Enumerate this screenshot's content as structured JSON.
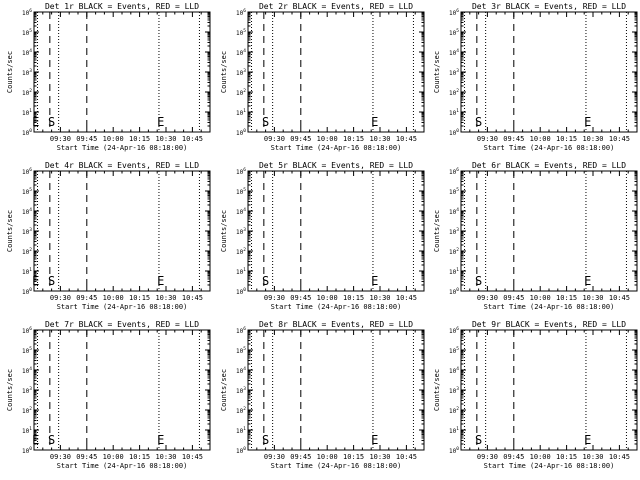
{
  "window": {
    "background": "#ffffff",
    "foreground": "#000000"
  },
  "chart_data": [
    {
      "type": "line",
      "title": "Det 1r BLACK = Events, RED = LLD",
      "xlabel": "Start Time (24-Apr-16 08:18:00)",
      "ylabel": "Counts/sec",
      "x_ticks": [
        "09:30",
        "09:45",
        "10:00",
        "10:15",
        "10:30",
        "10:45"
      ],
      "xlim_minutes": [
        555,
        655
      ],
      "y_ticks": [
        "10^0",
        "10^1",
        "10^2",
        "10^3",
        "10^4",
        "10^5",
        "10^6"
      ],
      "ylim": [
        1,
        1000000
      ],
      "log_y": true,
      "markers": [
        {
          "label": "E",
          "x": 556
        },
        {
          "label": "S",
          "x": 565
        },
        {
          "label": "E",
          "x": 627
        }
      ],
      "dashed_lines": [
        564,
        585
      ],
      "dotted_lines": [
        557,
        569,
        626,
        649
      ],
      "series": []
    },
    {
      "type": "line",
      "title": "Det 2r BLACK = Events, RED = LLD",
      "xlabel": "Start Time (24-Apr-16 08:18:00)",
      "ylabel": "Counts/sec",
      "x_ticks": [
        "09:30",
        "09:45",
        "10:00",
        "10:15",
        "10:30",
        "10:45"
      ],
      "xlim_minutes": [
        555,
        655
      ],
      "y_ticks": [
        "10^0",
        "10^1",
        "10^2",
        "10^3",
        "10^4",
        "10^5",
        "10^6"
      ],
      "ylim": [
        1,
        1000000
      ],
      "log_y": true,
      "markers": [
        {
          "label": "S",
          "x": 565
        },
        {
          "label": "E",
          "x": 627
        }
      ],
      "dashed_lines": [
        564,
        585
      ],
      "dotted_lines": [
        557,
        569,
        626,
        649
      ],
      "series": []
    },
    {
      "type": "line",
      "title": "Det 3r BLACK = Events, RED = LLD",
      "xlabel": "Start Time (24-Apr-16 08:18:00)",
      "ylabel": "Counts/sec",
      "x_ticks": [
        "09:30",
        "09:45",
        "10:00",
        "10:15",
        "10:30",
        "10:45"
      ],
      "xlim_minutes": [
        555,
        655
      ],
      "y_ticks": [
        "10^0",
        "10^1",
        "10^2",
        "10^3",
        "10^4",
        "10^5",
        "10^6"
      ],
      "ylim": [
        1,
        1000000
      ],
      "log_y": true,
      "markers": [
        {
          "label": "S",
          "x": 565
        },
        {
          "label": "E",
          "x": 627
        }
      ],
      "dashed_lines": [
        564,
        585
      ],
      "dotted_lines": [
        557,
        569,
        626,
        649
      ],
      "series": []
    },
    {
      "type": "line",
      "title": "Det 4r BLACK = Events, RED = LLD",
      "xlabel": "Start Time (24-Apr-16 08:18:00)",
      "ylabel": "Counts/sec",
      "x_ticks": [
        "09:30",
        "09:45",
        "10:00",
        "10:15",
        "10:30",
        "10:45"
      ],
      "xlim_minutes": [
        555,
        655
      ],
      "y_ticks": [
        "10^0",
        "10^1",
        "10^2",
        "10^3",
        "10^4",
        "10^5",
        "10^6"
      ],
      "ylim": [
        1,
        1000000
      ],
      "log_y": true,
      "markers": [
        {
          "label": "E",
          "x": 556
        },
        {
          "label": "S",
          "x": 565
        },
        {
          "label": "E",
          "x": 627
        }
      ],
      "dashed_lines": [
        564,
        585
      ],
      "dotted_lines": [
        557,
        569,
        626,
        649
      ],
      "series": []
    },
    {
      "type": "line",
      "title": "Det 5r BLACK = Events, RED = LLD",
      "xlabel": "Start Time (24-Apr-16 08:18:00)",
      "ylabel": "Counts/sec",
      "x_ticks": [
        "09:30",
        "09:45",
        "10:00",
        "10:15",
        "10:30",
        "10:45"
      ],
      "xlim_minutes": [
        555,
        655
      ],
      "y_ticks": [
        "10^0",
        "10^1",
        "10^2",
        "10^3",
        "10^4",
        "10^5",
        "10^6"
      ],
      "ylim": [
        1,
        1000000
      ],
      "log_y": true,
      "markers": [
        {
          "label": "S",
          "x": 565
        },
        {
          "label": "E",
          "x": 627
        }
      ],
      "dashed_lines": [
        564,
        585
      ],
      "dotted_lines": [
        557,
        569,
        626,
        649
      ],
      "series": []
    },
    {
      "type": "line",
      "title": "Det 6r BLACK = Events, RED = LLD",
      "xlabel": "Start Time (24-Apr-16 08:18:00)",
      "ylabel": "Counts/sec",
      "x_ticks": [
        "09:30",
        "09:45",
        "10:00",
        "10:15",
        "10:30",
        "10:45"
      ],
      "xlim_minutes": [
        555,
        655
      ],
      "y_ticks": [
        "10^0",
        "10^1",
        "10^2",
        "10^3",
        "10^4",
        "10^5",
        "10^6"
      ],
      "ylim": [
        1,
        1000000
      ],
      "log_y": true,
      "markers": [
        {
          "label": "S",
          "x": 565
        },
        {
          "label": "E",
          "x": 627
        }
      ],
      "dashed_lines": [
        564,
        585
      ],
      "dotted_lines": [
        557,
        569,
        626,
        649
      ],
      "series": []
    },
    {
      "type": "line",
      "title": "Det 7r BLACK = Events, RED = LLD",
      "xlabel": "Start Time (24-Apr-16 08:18:00)",
      "ylabel": "Counts/sec",
      "x_ticks": [
        "09:30",
        "09:45",
        "10:00",
        "10:15",
        "10:30",
        "10:45"
      ],
      "xlim_minutes": [
        555,
        655
      ],
      "y_ticks": [
        "10^0",
        "10^1",
        "10^2",
        "10^3",
        "10^4",
        "10^5",
        "10^6"
      ],
      "ylim": [
        1,
        1000000
      ],
      "log_y": true,
      "markers": [
        {
          "label": "E",
          "x": 556
        },
        {
          "label": "S",
          "x": 565
        },
        {
          "label": "E",
          "x": 627
        }
      ],
      "dashed_lines": [
        564,
        585
      ],
      "dotted_lines": [
        557,
        569,
        626,
        649
      ],
      "series": []
    },
    {
      "type": "line",
      "title": "Det 8r BLACK = Events, RED = LLD",
      "xlabel": "Start Time (24-Apr-16 08:18:00)",
      "ylabel": "Counts/sec",
      "x_ticks": [
        "09:30",
        "09:45",
        "10:00",
        "10:15",
        "10:30",
        "10:45"
      ],
      "xlim_minutes": [
        555,
        655
      ],
      "y_ticks": [
        "10^0",
        "10^1",
        "10^2",
        "10^3",
        "10^4",
        "10^5",
        "10^6"
      ],
      "ylim": [
        1,
        1000000
      ],
      "log_y": true,
      "markers": [
        {
          "label": "S",
          "x": 565
        },
        {
          "label": "E",
          "x": 627
        }
      ],
      "dashed_lines": [
        564,
        585
      ],
      "dotted_lines": [
        557,
        569,
        626,
        649
      ],
      "series": []
    },
    {
      "type": "line",
      "title": "Det 9r BLACK = Events, RED = LLD",
      "xlabel": "Start Time (24-Apr-16 08:18:00)",
      "ylabel": "Counts/sec",
      "x_ticks": [
        "09:30",
        "09:45",
        "10:00",
        "10:15",
        "10:30",
        "10:45"
      ],
      "xlim_minutes": [
        555,
        655
      ],
      "y_ticks": [
        "10^0",
        "10^1",
        "10^2",
        "10^3",
        "10^4",
        "10^5",
        "10^6"
      ],
      "ylim": [
        1,
        1000000
      ],
      "log_y": true,
      "markers": [
        {
          "label": "S",
          "x": 565
        },
        {
          "label": "E",
          "x": 627
        }
      ],
      "dashed_lines": [
        564,
        585
      ],
      "dotted_lines": [
        557,
        569,
        626,
        649
      ],
      "series": []
    }
  ]
}
